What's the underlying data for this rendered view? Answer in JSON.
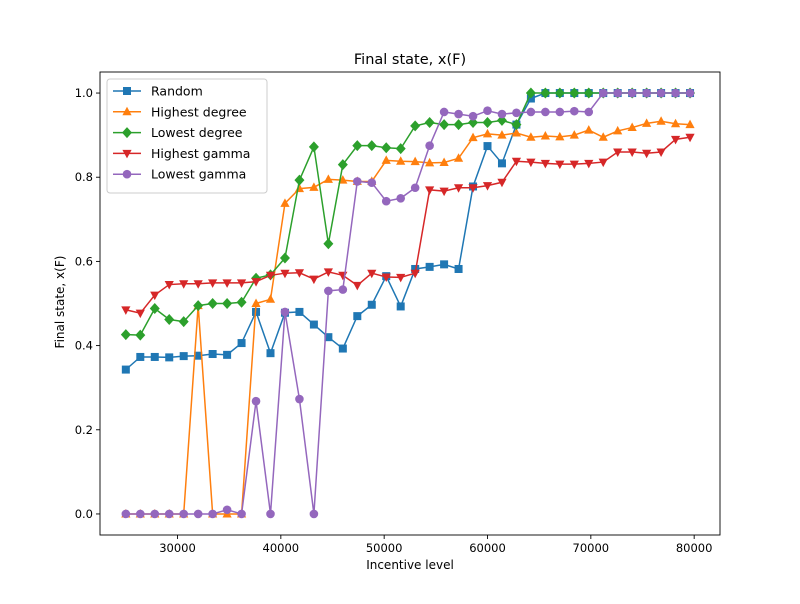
{
  "chart_data": {
    "type": "line",
    "title": "Final state, x(F)",
    "xlabel": "Incentive level",
    "ylabel": "Final state, x(F)",
    "xlim": [
      22500,
      82500
    ],
    "ylim": [
      -0.05,
      1.05
    ],
    "xticks": [
      30000,
      40000,
      50000,
      60000,
      70000,
      80000
    ],
    "yticks": [
      0.0,
      0.2,
      0.4,
      0.6,
      0.8,
      1.0
    ],
    "grid": false,
    "legend_position": "upper-left",
    "x": [
      25000,
      26400,
      27800,
      29200,
      30600,
      32000,
      33400,
      34800,
      36200,
      37600,
      39000,
      40400,
      41800,
      43200,
      44600,
      46000,
      47400,
      48800,
      50200,
      51600,
      53000,
      54400,
      55800,
      57200,
      58600,
      60000,
      61400,
      62800,
      64200,
      65600,
      67000,
      68400,
      69800,
      71200,
      72600,
      74000,
      75400,
      76800,
      78200,
      79600
    ],
    "series": [
      {
        "name": "Random",
        "color": "#1f77b4",
        "marker": "square",
        "values": [
          0.343,
          0.373,
          0.373,
          0.372,
          0.375,
          0.376,
          0.38,
          0.378,
          0.406,
          0.48,
          0.382,
          0.478,
          0.48,
          0.45,
          0.42,
          0.393,
          0.47,
          0.497,
          0.565,
          0.493,
          0.582,
          0.587,
          0.593,
          0.582,
          0.778,
          0.874,
          0.833,
          0.925,
          0.987,
          1.0,
          1.0,
          1.0,
          1.0,
          1.0,
          1.0,
          1.0,
          1.0,
          1.0,
          1.0,
          1.0
        ]
      },
      {
        "name": "Highest degree",
        "color": "#ff7f0e",
        "marker": "triangle-up",
        "values": [
          0.0,
          0.0,
          0.0,
          0.0,
          0.0,
          0.495,
          0.0,
          0.0,
          0.0,
          0.5,
          0.51,
          0.738,
          0.773,
          0.776,
          0.795,
          0.793,
          0.79,
          0.79,
          0.84,
          0.838,
          0.837,
          0.834,
          0.835,
          0.845,
          0.894,
          0.903,
          0.9,
          0.905,
          0.895,
          0.898,
          0.896,
          0.9,
          0.912,
          0.895,
          0.91,
          0.918,
          0.928,
          0.933,
          0.927,
          0.925
        ]
      },
      {
        "name": "Lowest degree",
        "color": "#2ca02c",
        "marker": "diamond",
        "values": [
          0.426,
          0.425,
          0.488,
          0.462,
          0.457,
          0.495,
          0.5,
          0.5,
          0.503,
          0.56,
          0.568,
          0.608,
          0.793,
          0.872,
          0.642,
          0.83,
          0.875,
          0.875,
          0.87,
          0.868,
          0.922,
          0.93,
          0.925,
          0.925,
          0.93,
          0.93,
          0.935,
          0.925,
          1.0,
          1.0,
          1.0,
          1.0,
          1.0,
          1.0,
          1.0,
          1.0,
          1.0,
          1.0,
          1.0,
          1.0
        ]
      },
      {
        "name": "Highest gamma",
        "color": "#d62728",
        "marker": "triangle-down",
        "values": [
          0.485,
          0.477,
          0.52,
          0.545,
          0.547,
          0.547,
          0.549,
          0.549,
          0.549,
          0.552,
          0.567,
          0.572,
          0.573,
          0.558,
          0.575,
          0.567,
          0.543,
          0.572,
          0.563,
          0.562,
          0.572,
          0.77,
          0.767,
          0.775,
          0.775,
          0.78,
          0.788,
          0.838,
          0.836,
          0.833,
          0.831,
          0.831,
          0.833,
          0.836,
          0.86,
          0.86,
          0.857,
          0.86,
          0.89,
          0.895
        ]
      },
      {
        "name": "Lowest gamma",
        "color": "#9467bd",
        "marker": "circle",
        "values": [
          0.0,
          0.0,
          0.0,
          0.0,
          0.0,
          0.0,
          0.0,
          0.01,
          0.0,
          0.268,
          0.0,
          0.48,
          0.273,
          0.0,
          0.53,
          0.533,
          0.79,
          0.787,
          0.743,
          0.75,
          0.775,
          0.875,
          0.955,
          0.95,
          0.945,
          0.958,
          0.95,
          0.953,
          0.955,
          0.955,
          0.955,
          0.957,
          0.955,
          1.0,
          1.0,
          1.0,
          1.0,
          1.0,
          1.0,
          1.0
        ]
      }
    ]
  }
}
